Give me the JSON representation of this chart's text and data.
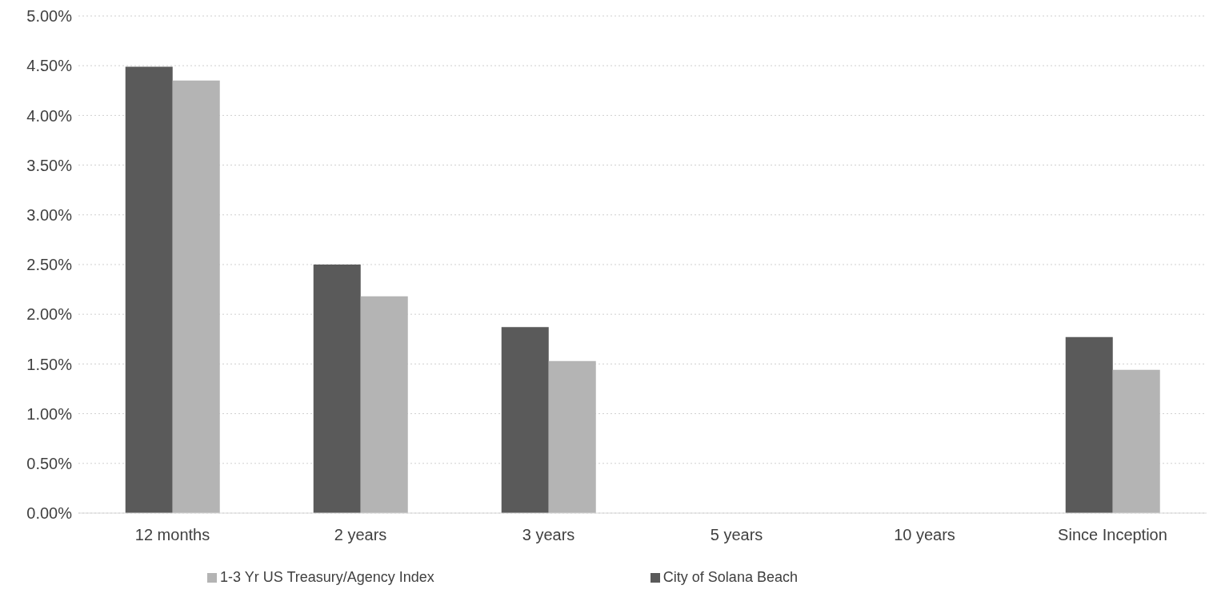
{
  "chart_data": {
    "type": "bar",
    "categories": [
      "12 months",
      "2 years",
      "3 years",
      "5 years",
      "10 years",
      "Since Inception"
    ],
    "series": [
      {
        "name": "City of Solana Beach",
        "color": "#5a5a5a",
        "values": [
          4.49,
          2.5,
          1.87,
          null,
          null,
          1.77
        ]
      },
      {
        "name": "1-3 Yr US Treasury/Agency Index",
        "color": "#b4b4b4",
        "values": [
          4.35,
          2.18,
          1.53,
          null,
          null,
          1.44
        ]
      }
    ],
    "ylim": [
      0,
      5
    ],
    "yticks": [
      {
        "value": 0,
        "label": "0.00%"
      },
      {
        "value": 0.5,
        "label": "0.50%"
      },
      {
        "value": 1,
        "label": "1.00%"
      },
      {
        "value": 1.5,
        "label": "1.50%"
      },
      {
        "value": 2,
        "label": "2.00%"
      },
      {
        "value": 2.5,
        "label": "2.50%"
      },
      {
        "value": 3,
        "label": "3.00%"
      },
      {
        "value": 3.5,
        "label": "3.50%"
      },
      {
        "value": 4,
        "label": "4.00%"
      },
      {
        "value": 4.5,
        "label": "4.50%"
      },
      {
        "value": 5,
        "label": "5.00%"
      }
    ],
    "grid": "y",
    "legend": "bottom"
  }
}
